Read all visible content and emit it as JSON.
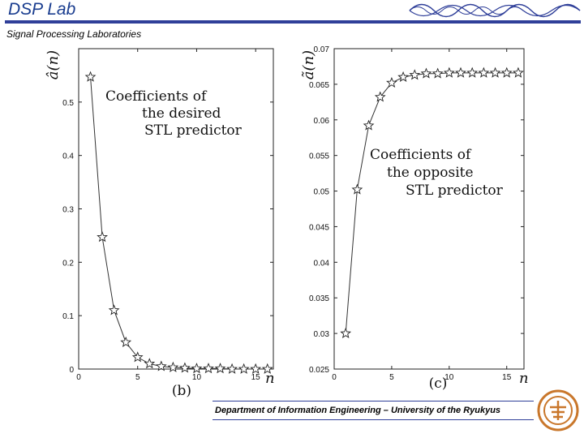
{
  "header": {
    "title": "DSP Lab",
    "subtitle": "Signal Processing Laboratories"
  },
  "footer": {
    "text": "Department of Information Engineering  – University of the Ryukyus"
  },
  "chart_data": [
    {
      "type": "line",
      "panel_label": "(b)",
      "ylabel": "â(n)",
      "xlabel": "n",
      "annotation": [
        "Coefficients of",
        "the desired",
        "STL predictor"
      ],
      "xlim": [
        0,
        16.5
      ],
      "ylim": [
        0,
        0.6
      ],
      "xticks": [
        "0",
        "5",
        "10",
        "15"
      ],
      "xtick_values": [
        0,
        5,
        10,
        15
      ],
      "yticks": [
        "0",
        "0.1",
        "0.2",
        "0.3",
        "0.4",
        "0.5"
      ],
      "ytick_values": [
        0,
        0.1,
        0.2,
        0.3,
        0.4,
        0.5
      ],
      "x": [
        1,
        2,
        3,
        4,
        5,
        6,
        7,
        8,
        9,
        10,
        11,
        12,
        13,
        14,
        15,
        16
      ],
      "values": [
        0.547,
        0.247,
        0.11,
        0.05,
        0.022,
        0.01,
        0.005,
        0.003,
        0.002,
        0.001,
        0.001,
        0.001,
        0.0,
        0.0,
        0.0,
        0.0
      ],
      "marker": "star"
    },
    {
      "type": "line",
      "panel_label": "(c)",
      "ylabel": "ã(n)",
      "xlabel": "n",
      "annotation": [
        "Coefficients of",
        "the opposite",
        "STL predictor"
      ],
      "xlim": [
        0,
        16.5
      ],
      "ylim": [
        0.025,
        0.07
      ],
      "xticks": [
        "0",
        "5",
        "10",
        "15"
      ],
      "xtick_values": [
        0,
        5,
        10,
        15
      ],
      "yticks": [
        "0.025",
        "0.03",
        "0.035",
        "0.04",
        "0.045",
        "0.05",
        "0.055",
        "0.06",
        "0.065",
        "0.07"
      ],
      "ytick_values": [
        0.025,
        0.03,
        0.035,
        0.04,
        0.045,
        0.05,
        0.055,
        0.06,
        0.065,
        0.07
      ],
      "x": [
        1,
        2,
        3,
        4,
        5,
        6,
        7,
        8,
        9,
        10,
        11,
        12,
        13,
        14,
        15,
        16
      ],
      "values": [
        0.03,
        0.0502,
        0.0592,
        0.0632,
        0.0652,
        0.066,
        0.0663,
        0.0665,
        0.0665,
        0.0666,
        0.0666,
        0.0666,
        0.0666,
        0.0666,
        0.0666,
        0.0666
      ],
      "marker": "star"
    }
  ]
}
